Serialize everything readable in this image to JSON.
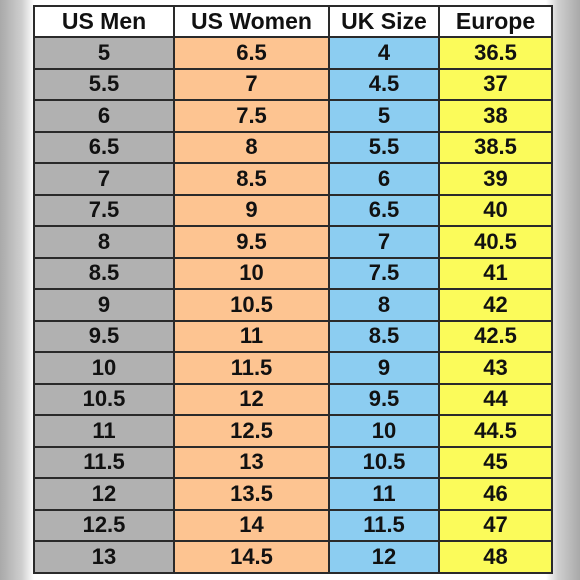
{
  "chart_data": {
    "type": "table",
    "columns": [
      "US Men",
      "US Women",
      "UK Size",
      "Europe"
    ],
    "rows": [
      [
        "5",
        "6.5",
        "4",
        "36.5"
      ],
      [
        "5.5",
        "7",
        "4.5",
        "37"
      ],
      [
        "6",
        "7.5",
        "5",
        "38"
      ],
      [
        "6.5",
        "8",
        "5.5",
        "38.5"
      ],
      [
        "7",
        "8.5",
        "6",
        "39"
      ],
      [
        "7.5",
        "9",
        "6.5",
        "40"
      ],
      [
        "8",
        "9.5",
        "7",
        "40.5"
      ],
      [
        "8.5",
        "10",
        "7.5",
        "41"
      ],
      [
        "9",
        "10.5",
        "8",
        "42"
      ],
      [
        "9.5",
        "11",
        "8.5",
        "42.5"
      ],
      [
        "10",
        "11.5",
        "9",
        "43"
      ],
      [
        "10.5",
        "12",
        "9.5",
        "44"
      ],
      [
        "11",
        "12.5",
        "10",
        "44.5"
      ],
      [
        "11.5",
        "13",
        "10.5",
        "45"
      ],
      [
        "12",
        "13.5",
        "11",
        "46"
      ],
      [
        "12.5",
        "14",
        "11.5",
        "47"
      ],
      [
        "13",
        "14.5",
        "12",
        "48"
      ]
    ]
  },
  "colors": {
    "us_men_column": "#b1b1b1",
    "us_women_column": "#fdc491",
    "uk_size_column": "#8ccdf1",
    "europe_column": "#fbfb5a",
    "grid_lines": "#2a2a2a"
  }
}
